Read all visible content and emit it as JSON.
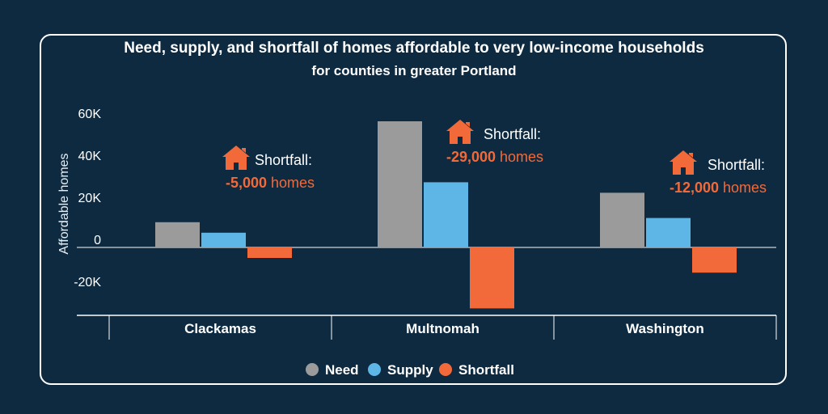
{
  "chart_data": {
    "type": "bar",
    "title": "Need, supply, and shortfall of homes affordable to very low-income households",
    "subtitle": "for counties in greater Portland",
    "ylabel": "Affordable homes",
    "xlabel": "",
    "categories": [
      "Clackamas",
      "Multnomah",
      "Washington"
    ],
    "series": [
      {
        "name": "Need",
        "color": "#9b9b9b",
        "values": [
          12000,
          60000,
          26000
        ]
      },
      {
        "name": "Supply",
        "color": "#5db6e6",
        "values": [
          7000,
          31000,
          14000
        ]
      },
      {
        "name": "Shortfall",
        "color": "#f26a3a",
        "values": [
          -5000,
          -29000,
          -12000
        ]
      }
    ],
    "ylim": [
      -32000,
      65000
    ],
    "yticks": [
      60000,
      40000,
      20000,
      0,
      -20000
    ],
    "ytick_labels": [
      "60K",
      "40K",
      "20K",
      "0",
      "-20K"
    ],
    "grid": false,
    "legend_position": "bottom",
    "annotations": [
      {
        "category": "Clackamas",
        "heading": "Shortfall:",
        "value": "-5,000",
        "unit": " homes",
        "icon": "house-icon"
      },
      {
        "category": "Multnomah",
        "heading": "Shortfall:",
        "value": "-29,000",
        "unit": " homes",
        "icon": "house-icon"
      },
      {
        "category": "Washington",
        "heading": "Shortfall:",
        "value": "-12,000",
        "unit": " homes",
        "icon": "house-icon"
      }
    ],
    "colors": {
      "background": "#0d2a40",
      "text": "#ffffff",
      "accent": "#f26a3a"
    }
  }
}
